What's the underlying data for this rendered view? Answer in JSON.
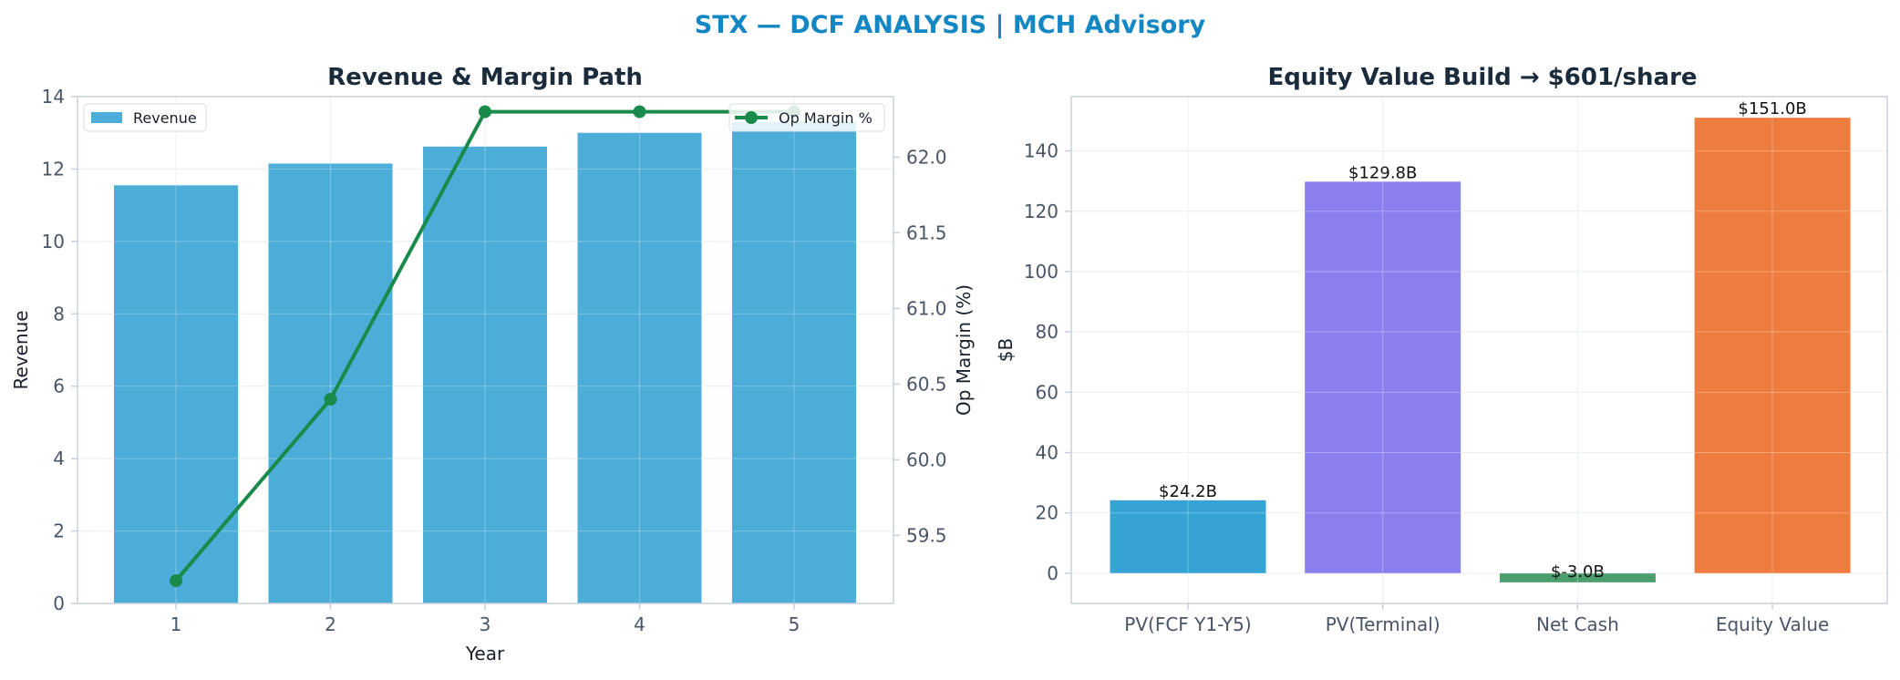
{
  "page": {
    "suptitle": "STX — DCF ANALYSIS | MCH Advisory",
    "title_color": "#1287c4"
  },
  "chart_data": [
    {
      "type": "bar",
      "title": "Revenue & Margin Path",
      "xlabel": "Year",
      "ylabel": "Revenue",
      "y2label": "Op Margin (%)",
      "categories": [
        "1",
        "2",
        "3",
        "4",
        "5"
      ],
      "xticks": [
        "1",
        "2",
        "3",
        "4",
        "5"
      ],
      "ylim": [
        0,
        14
      ],
      "yticks": [
        "0",
        "2",
        "4",
        "6",
        "8",
        "10",
        "12",
        "14"
      ],
      "y2lim": [
        59.05,
        62.4
      ],
      "y2ticks": [
        "59.5",
        "60.0",
        "60.5",
        "61.0",
        "61.5",
        "62.0"
      ],
      "grid": true,
      "series": [
        {
          "name": "Revenue",
          "type": "bar",
          "values": [
            11.55,
            12.15,
            12.62,
            13.0,
            13.3
          ],
          "color": "#4badd8"
        },
        {
          "name": "Op Margin %",
          "type": "line",
          "axis": "right",
          "values": [
            59.2,
            60.4,
            62.3,
            62.3,
            62.3
          ],
          "color": "#1a8a4a"
        }
      ],
      "legend": [
        {
          "label": "Revenue",
          "placement": "upper-left"
        },
        {
          "label": "Op Margin %",
          "placement": "upper-right"
        }
      ]
    },
    {
      "type": "bar",
      "title": "Equity Value Build → $601/share",
      "xlabel": "",
      "ylabel": "$B",
      "categories": [
        "PV(FCF Y1-Y5)",
        "PV(Terminal)",
        "Net Cash",
        "Equity Value"
      ],
      "values": [
        24.2,
        129.8,
        -3.0,
        151.0
      ],
      "data_labels": [
        "$24.2B",
        "$129.8B",
        "$-3.0B",
        "$151.0B"
      ],
      "colors": [
        "#35a3d4",
        "#8b7eee",
        "#4b9e6d",
        "#ed7c3e"
      ],
      "ylim": [
        -10,
        158
      ],
      "yticks": [
        "0",
        "20",
        "40",
        "60",
        "80",
        "100",
        "120",
        "140"
      ],
      "grid": true
    }
  ]
}
